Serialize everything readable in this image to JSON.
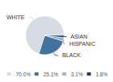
{
  "chart_data": {
    "type": "pie",
    "categories": [
      "WHITE",
      "BLACK",
      "HISPANIC",
      "ASIAN"
    ],
    "values": [
      70.0,
      25.1,
      3.1,
      1.8
    ],
    "value_labels": [
      "70.0%",
      "25.1%",
      "3.1%",
      "1.8%"
    ],
    "colors": [
      "#d6dce4",
      "#4472a0",
      "#9eb3c8",
      "#1f3864"
    ],
    "legend": "bottom"
  }
}
